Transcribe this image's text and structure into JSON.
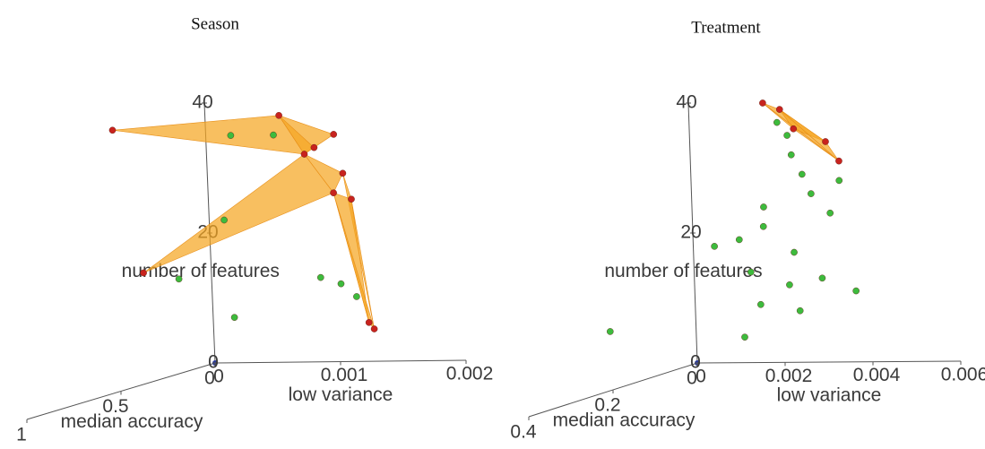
{
  "chart_data": [
    {
      "type": "scatter3d",
      "title": "Season",
      "xlabel": "low variance",
      "ylabel": "median accuracy",
      "zlabel": "number of features",
      "xlim": [
        0,
        0.002
      ],
      "xticks": [
        0,
        0.001,
        0.002
      ],
      "ylim": [
        0,
        1
      ],
      "yticks": [
        0,
        0.5,
        1
      ],
      "zlim": [
        0,
        40
      ],
      "zticks": [
        0,
        20,
        40
      ],
      "series": [
        {
          "color": "#c8231e",
          "x": [
            0.00017,
            0.0015,
            0.00177,
            0.00193,
            0.00169,
            0.00199,
            0.00191,
            0.00205,
            0.00037,
            0.00215,
            0.00219
          ],
          "y": [
            0.6,
            0.6,
            0.6,
            0.6,
            0.6,
            0.6,
            0.6,
            0.6,
            0.6,
            0.6,
            0.6
          ],
          "z": [
            41,
            43,
            38,
            40,
            37,
            34,
            31,
            30,
            19,
            11,
            10
          ]
        },
        {
          "color": "#3dbb3d",
          "x": [
            0.00111,
            0.00145,
            0.00103,
            0.00065,
            0.00178,
            0.00194,
            0.00206,
            0.00108
          ],
          "y": [
            0.6,
            0.6,
            0.6,
            0.6,
            0.6,
            0.6,
            0.6,
            0.6
          ],
          "z": [
            40,
            40,
            27,
            18,
            18,
            17,
            15,
            12
          ]
        }
      ]
    },
    {
      "type": "scatter3d",
      "title": "Treatment",
      "xlabel": "low variance",
      "ylabel": "median accuracy",
      "zlabel": "number of features",
      "xlim": [
        0,
        0.006
      ],
      "xticks": [
        0,
        0.002,
        0.004,
        0.006
      ],
      "ylim": [
        0,
        0.4
      ],
      "yticks": [
        0,
        0.2,
        0.4
      ],
      "zlim": [
        0,
        40
      ],
      "zticks": [
        0,
        20,
        40
      ],
      "series": [
        {
          "color": "#c8231e",
          "x": [
            0.0046,
            0.00498,
            0.00528,
            0.006,
            0.00629
          ],
          "y": [
            0.3,
            0.3,
            0.3,
            0.3,
            0.3
          ],
          "z": [
            46,
            45,
            42,
            40,
            37
          ]
        },
        {
          "color": "#3dbb3d",
          "x": [
            0.00491,
            0.00513,
            0.00521,
            0.00544,
            0.00563,
            0.00628,
            0.00605,
            0.00454,
            0.00452,
            0.00396,
            0.0052,
            0.00339,
            0.0042,
            0.00582,
            0.00658,
            0.00507,
            0.0044,
            0.00529,
            0.00401,
            0.00095
          ],
          "y": [
            0.3,
            0.3,
            0.3,
            0.3,
            0.3,
            0.3,
            0.3,
            0.3,
            0.3,
            0.3,
            0.3,
            0.3,
            0.3,
            0.3,
            0.3,
            0.3,
            0.3,
            0.3,
            0.3,
            0.3
          ],
          "z": [
            43,
            41,
            38,
            35,
            32,
            34,
            29,
            30,
            27,
            25,
            23,
            24,
            20,
            19,
            17,
            18,
            15,
            14,
            10,
            11
          ]
        }
      ]
    }
  ]
}
